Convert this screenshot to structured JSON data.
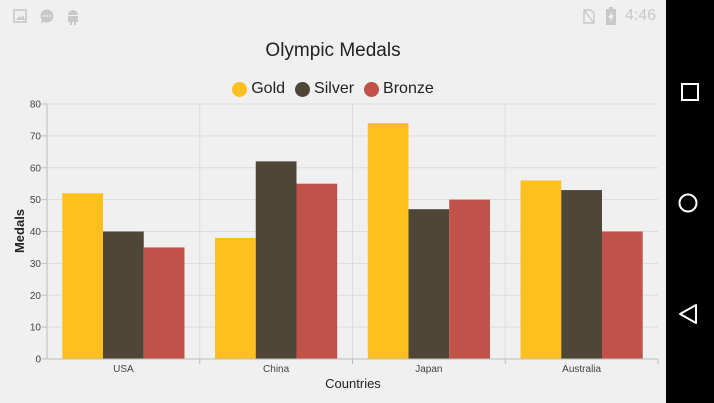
{
  "status_bar": {
    "time": "4:46",
    "icons": [
      "image-icon",
      "chat-bubble-icon",
      "android-icon",
      "no-sim-icon",
      "battery-charging-icon"
    ]
  },
  "nav_bar": {
    "buttons": [
      "recents-square-icon",
      "home-circle-icon",
      "back-triangle-icon"
    ]
  },
  "colors": {
    "gold": "#ffbf1f",
    "silver": "#4f4638",
    "bronze": "#c0524a",
    "grid": "#dcdcdc",
    "axis": "#bdbdbd"
  },
  "chart_data": {
    "type": "bar",
    "title": "Olympic Medals",
    "xlabel": "Countries",
    "ylabel": "Medals",
    "categories": [
      "USA",
      "China",
      "Japan",
      "Australia"
    ],
    "series": [
      {
        "name": "Gold",
        "values": [
          52,
          38,
          74,
          56
        ]
      },
      {
        "name": "Silver",
        "values": [
          40,
          62,
          47,
          53
        ]
      },
      {
        "name": "Bronze",
        "values": [
          35,
          55,
          50,
          40
        ]
      }
    ],
    "ylim": [
      0,
      80
    ],
    "yticks": [
      0,
      10,
      20,
      30,
      40,
      50,
      60,
      70,
      80
    ],
    "grid": true,
    "legend_position": "top"
  }
}
